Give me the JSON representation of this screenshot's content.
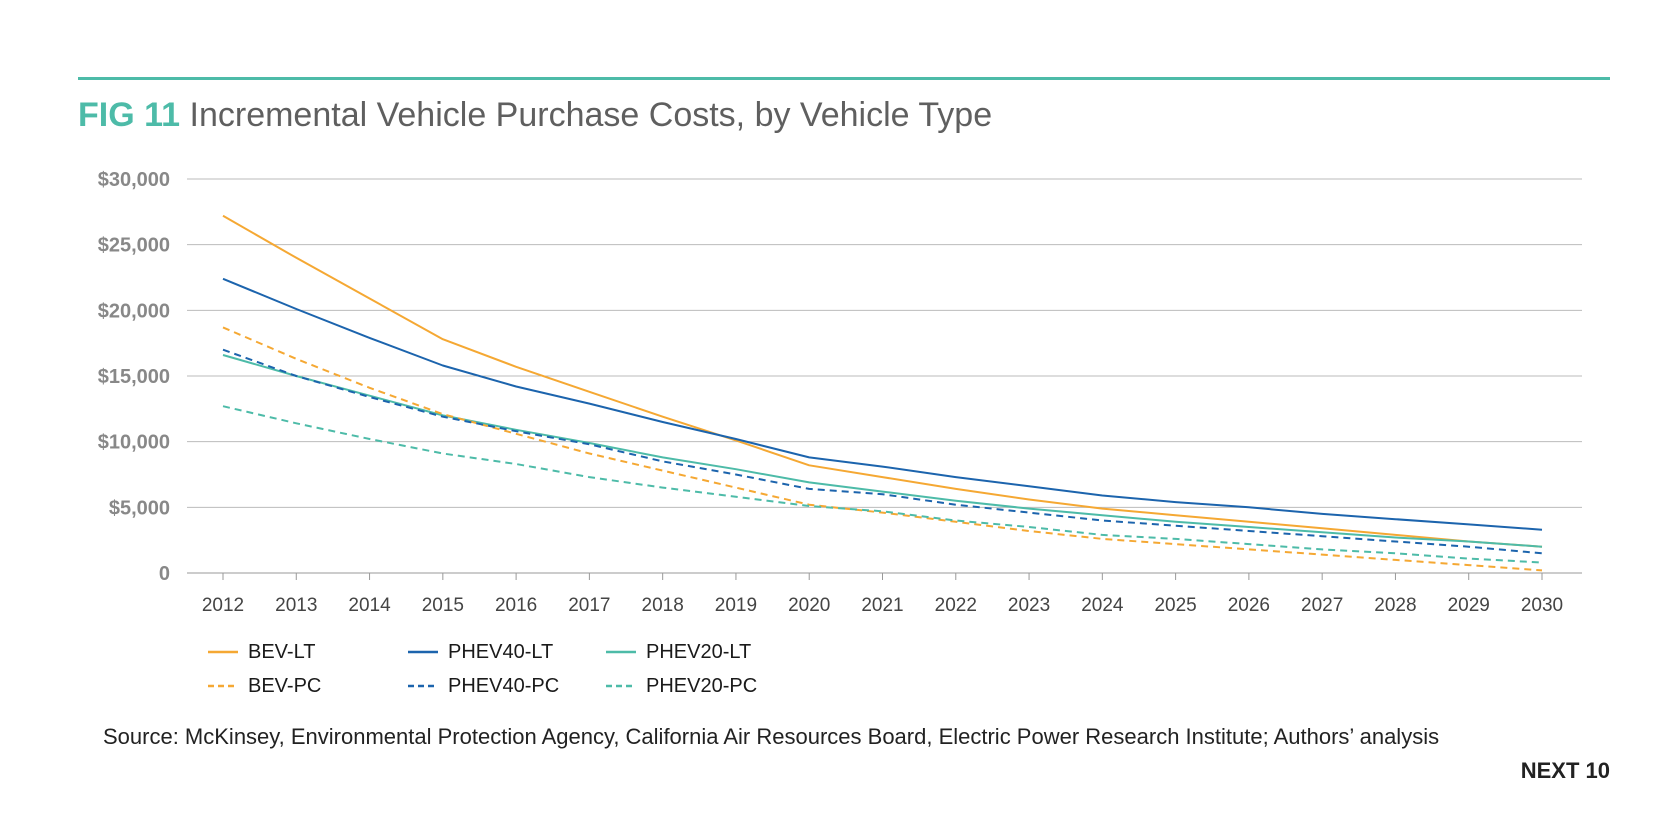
{
  "header": {
    "fig_label": "FIG 11",
    "title_text": "Incremental Vehicle Purchase Costs, by Vehicle Type"
  },
  "source_text": "Source: McKinsey, Environmental Protection Agency, California Air Resources Board, Electric Power Research Institute; Authors’ analysis",
  "brand": "NEXT 10",
  "colors": {
    "orange": "#f5a833",
    "blue": "#1c64ad",
    "teal": "#4dbba8",
    "grid": "#bbbbbb",
    "tick": "#888888",
    "accent": "#4dbba8"
  },
  "chart_data": {
    "type": "line",
    "x": [
      2012,
      2013,
      2014,
      2015,
      2016,
      2017,
      2018,
      2019,
      2020,
      2021,
      2022,
      2023,
      2024,
      2025,
      2026,
      2027,
      2028,
      2029,
      2030
    ],
    "ylim": [
      0,
      30000
    ],
    "yticks": [
      0,
      5000,
      10000,
      15000,
      20000,
      25000,
      30000
    ],
    "ytick_labels": [
      "0",
      "$5,000",
      "$10,000",
      "$15,000",
      "$20,000",
      "$25,000",
      "$30,000"
    ],
    "grid": true,
    "legend_position": "bottom-left",
    "series": [
      {
        "name": "BEV-LT",
        "color": "#f5a833",
        "style": "solid",
        "values": [
          27200,
          24000,
          20900,
          17800,
          15700,
          13800,
          11900,
          10100,
          8200,
          7300,
          6400,
          5600,
          4900,
          4400,
          3900,
          3400,
          2900,
          2400,
          2000
        ]
      },
      {
        "name": "PHEV40-LT",
        "color": "#1c64ad",
        "style": "solid",
        "values": [
          22400,
          20100,
          17900,
          15800,
          14200,
          12900,
          11500,
          10200,
          8800,
          8100,
          7300,
          6600,
          5900,
          5400,
          5000,
          4500,
          4100,
          3700,
          3300
        ]
      },
      {
        "name": "PHEV20-LT",
        "color": "#4dbba8",
        "style": "solid",
        "values": [
          16600,
          15000,
          13500,
          12000,
          10900,
          9900,
          8800,
          7900,
          6900,
          6200,
          5500,
          4900,
          4400,
          3900,
          3500,
          3100,
          2700,
          2400,
          2000
        ]
      },
      {
        "name": "BEV-PC",
        "color": "#f5a833",
        "style": "dashed",
        "values": [
          18700,
          16300,
          14100,
          12100,
          10600,
          9100,
          7800,
          6500,
          5200,
          4600,
          3900,
          3200,
          2600,
          2200,
          1800,
          1400,
          1000,
          600,
          200
        ]
      },
      {
        "name": "PHEV40-PC",
        "color": "#1c64ad",
        "style": "dashed",
        "values": [
          17000,
          15000,
          13400,
          11900,
          10800,
          9800,
          8500,
          7500,
          6400,
          6000,
          5200,
          4600,
          4000,
          3600,
          3200,
          2800,
          2400,
          2000,
          1500
        ]
      },
      {
        "name": "PHEV20-PC",
        "color": "#4dbba8",
        "style": "dashed",
        "values": [
          12700,
          11400,
          10200,
          9100,
          8300,
          7300,
          6500,
          5800,
          5100,
          4700,
          4000,
          3500,
          2900,
          2600,
          2200,
          1800,
          1500,
          1100,
          800
        ]
      }
    ]
  },
  "legend": [
    {
      "label": "BEV-LT",
      "color": "#f5a833",
      "style": "solid"
    },
    {
      "label": "PHEV40-LT",
      "color": "#1c64ad",
      "style": "solid"
    },
    {
      "label": "PHEV20-LT",
      "color": "#4dbba8",
      "style": "solid"
    },
    {
      "label": "BEV-PC",
      "color": "#f5a833",
      "style": "dashed"
    },
    {
      "label": "PHEV40-PC",
      "color": "#1c64ad",
      "style": "dashed"
    },
    {
      "label": "PHEV20-PC",
      "color": "#4dbba8",
      "style": "dashed"
    }
  ]
}
